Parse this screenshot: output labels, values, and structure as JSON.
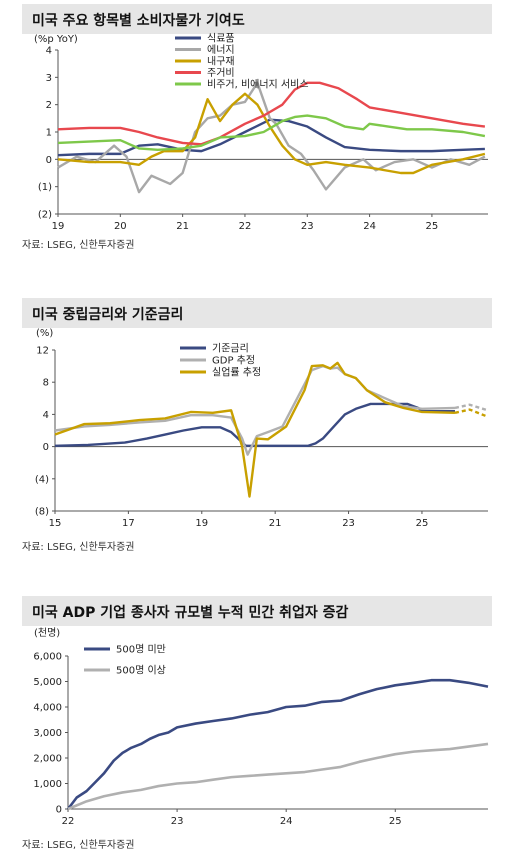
{
  "charts": [
    {
      "title": "미국 주요 항목별 소비자물가 기여도",
      "source": "자료: LSEG, 신한투자증권",
      "chart_data": {
        "type": "line",
        "ylabel": "(%p YoY)",
        "ylim": [
          -2,
          4
        ],
        "yticks": [
          4,
          3,
          2,
          1,
          0,
          -1,
          -2
        ],
        "ytick_labels": [
          "4",
          "3",
          "2",
          "1",
          "0",
          "(1)",
          "(2)"
        ],
        "xlim": [
          2019,
          2025.9
        ],
        "xticks": [
          2019,
          2020,
          2021,
          2022,
          2023,
          2024,
          2025
        ],
        "xtick_labels": [
          "19",
          "20",
          "21",
          "22",
          "23",
          "24",
          "25"
        ],
        "grid": false,
        "legend_position": "top-center",
        "series": [
          {
            "name": "식료품",
            "color": "#3a4a82",
            "x": [
              2019,
              2019.5,
              2020,
              2020.3,
              2020.6,
              2021,
              2021.3,
              2021.6,
              2022,
              2022.4,
              2022.7,
              2023,
              2023.3,
              2023.6,
              2024,
              2024.5,
              2025,
              2025.5,
              2025.85
            ],
            "y": [
              0.15,
              0.2,
              0.2,
              0.5,
              0.55,
              0.35,
              0.3,
              0.55,
              1.0,
              1.45,
              1.4,
              1.2,
              0.8,
              0.45,
              0.35,
              0.3,
              0.3,
              0.35,
              0.38
            ]
          },
          {
            "name": "에너지",
            "color": "#a8a8a8",
            "x": [
              2019,
              2019.3,
              2019.6,
              2019.9,
              2020.1,
              2020.3,
              2020.5,
              2020.8,
              2021,
              2021.2,
              2021.4,
              2021.6,
              2021.8,
              2022,
              2022.2,
              2022.4,
              2022.5,
              2022.7,
              2022.9,
              2023.1,
              2023.3,
              2023.6,
              2023.9,
              2024.1,
              2024.4,
              2024.7,
              2025,
              2025.3,
              2025.6,
              2025.85
            ],
            "y": [
              -0.3,
              0.1,
              -0.1,
              0.5,
              0.1,
              -1.2,
              -0.6,
              -0.9,
              -0.5,
              1.0,
              1.5,
              1.6,
              2.0,
              2.1,
              2.8,
              1.5,
              1.3,
              0.5,
              0.2,
              -0.4,
              -1.1,
              -0.3,
              0.0,
              -0.4,
              -0.1,
              0.0,
              -0.3,
              0.0,
              -0.2,
              0.1
            ]
          },
          {
            "name": "내구재",
            "color": "#c8a000",
            "x": [
              2019,
              2019.5,
              2020,
              2020.3,
              2020.5,
              2020.7,
              2021,
              2021.2,
              2021.4,
              2021.6,
              2021.8,
              2022,
              2022.2,
              2022.4,
              2022.6,
              2022.8,
              2023,
              2023.3,
              2023.6,
              2024,
              2024.5,
              2024.7,
              2025,
              2025.5,
              2025.85
            ],
            "y": [
              0.0,
              -0.1,
              -0.1,
              -0.2,
              0.1,
              0.3,
              0.3,
              0.8,
              2.2,
              1.4,
              2.0,
              2.4,
              2.0,
              1.2,
              0.5,
              0.0,
              -0.2,
              -0.1,
              -0.2,
              -0.3,
              -0.5,
              -0.5,
              -0.2,
              0.0,
              0.2
            ]
          },
          {
            "name": "주거비",
            "color": "#e8484e",
            "x": [
              2019,
              2019.5,
              2020,
              2020.3,
              2020.6,
              2021,
              2021.3,
              2021.6,
              2022,
              2022.3,
              2022.6,
              2022.8,
              2023,
              2023.2,
              2023.5,
              2023.8,
              2024,
              2024.5,
              2025,
              2025.5,
              2025.85
            ],
            "y": [
              1.1,
              1.15,
              1.15,
              1.0,
              0.8,
              0.6,
              0.55,
              0.8,
              1.3,
              1.6,
              2.0,
              2.55,
              2.8,
              2.8,
              2.6,
              2.2,
              1.9,
              1.7,
              1.5,
              1.3,
              1.2
            ]
          },
          {
            "name": "비주거, 비에너지 서비스",
            "color": "#7ec84a",
            "x": [
              2019,
              2019.5,
              2020,
              2020.3,
              2020.6,
              2021,
              2021.3,
              2021.6,
              2022,
              2022.3,
              2022.6,
              2022.8,
              2023,
              2023.3,
              2023.6,
              2023.9,
              2024,
              2024.3,
              2024.6,
              2025,
              2025.5,
              2025.85
            ],
            "y": [
              0.6,
              0.65,
              0.7,
              0.4,
              0.35,
              0.4,
              0.5,
              0.8,
              0.85,
              1.0,
              1.4,
              1.55,
              1.6,
              1.5,
              1.2,
              1.1,
              1.3,
              1.2,
              1.1,
              1.1,
              1.0,
              0.85
            ]
          }
        ]
      }
    },
    {
      "title": "미국 중립금리와 기준금리",
      "source": "자료: LSEG, 신한투자증권",
      "chart_data": {
        "type": "line",
        "ylabel": "(%)",
        "ylim": [
          -8,
          12
        ],
        "yticks": [
          12,
          8,
          4,
          0,
          -4,
          -8
        ],
        "ytick_labels": [
          "12",
          "8",
          "4",
          "0",
          "(4)",
          "(8)"
        ],
        "xlim": [
          2015,
          2026.8
        ],
        "xticks": [
          2015,
          2017,
          2019,
          2021,
          2023,
          2025
        ],
        "xtick_labels": [
          "15",
          "17",
          "19",
          "21",
          "23",
          "25"
        ],
        "grid": false,
        "legend_position": "top-center",
        "series": [
          {
            "name": "기준금리",
            "color": "#3a4a82",
            "dashed_from": null,
            "x": [
              2015,
              2015.9,
              2016.9,
              2017.5,
              2018,
              2018.5,
              2019,
              2019.5,
              2019.8,
              2020.2,
              2021,
              2021.9,
              2022.1,
              2022.3,
              2022.6,
              2022.9,
              2023.2,
              2023.6,
              2024.6,
              2024.9,
              2025,
              2025.9
            ],
            "y": [
              0.1,
              0.2,
              0.5,
              1.0,
              1.5,
              2.0,
              2.4,
              2.4,
              1.8,
              0.1,
              0.1,
              0.1,
              0.4,
              1.0,
              2.5,
              4.0,
              4.7,
              5.3,
              5.3,
              4.8,
              4.4,
              4.4
            ]
          },
          {
            "name": "GDP 추정",
            "color": "#b0b0b0",
            "dashed_from": 2025.9,
            "x": [
              2015,
              2015.8,
              2016.5,
              2017.3,
              2018,
              2018.7,
              2019.3,
              2019.8,
              2020.1,
              2020.25,
              2020.5,
              2020.8,
              2021.2,
              2021.6,
              2022,
              2022.3,
              2022.5,
              2022.7,
              2022.9,
              2023.2,
              2023.5,
              2024,
              2024.5,
              2025,
              2025.9,
              2026.3,
              2026.8
            ],
            "y": [
              2.0,
              2.5,
              2.7,
              3.0,
              3.2,
              3.9,
              3.9,
              3.6,
              1.0,
              -1.0,
              1.3,
              1.8,
              2.5,
              6.0,
              9.5,
              10.0,
              9.7,
              9.8,
              9.0,
              8.5,
              7.0,
              6.0,
              5.0,
              4.7,
              4.8,
              5.2,
              4.5
            ]
          },
          {
            "name": "실업률 추정",
            "color": "#c8a000",
            "dashed_from": 2025.9,
            "x": [
              2015,
              2015.8,
              2016.5,
              2017.3,
              2018,
              2018.7,
              2019.3,
              2019.8,
              2020.1,
              2020.3,
              2020.5,
              2020.8,
              2021.3,
              2021.8,
              2022,
              2022.3,
              2022.5,
              2022.7,
              2022.9,
              2023.2,
              2023.5,
              2024,
              2024.5,
              2025,
              2025.9,
              2026.3,
              2026.8
            ],
            "y": [
              1.5,
              2.8,
              2.9,
              3.3,
              3.5,
              4.3,
              4.2,
              4.5,
              0.0,
              -6.2,
              1.0,
              0.9,
              2.5,
              7.0,
              10.0,
              10.1,
              9.7,
              10.4,
              9.0,
              8.5,
              7.0,
              5.5,
              4.8,
              4.3,
              4.2,
              4.6,
              3.7
            ]
          }
        ]
      }
    },
    {
      "title": "미국 ADP 기업 종사자 규모별 누적 민간 취업자 증감",
      "source": "자료: LSEG, 신한투자증권",
      "chart_data": {
        "type": "line",
        "ylabel": "(천명)",
        "ylim": [
          0,
          6000
        ],
        "yticks": [
          6000,
          5000,
          4000,
          3000,
          2000,
          1000,
          0
        ],
        "ytick_labels": [
          "6,000",
          "5,000",
          "4,000",
          "3,000",
          "2,000",
          "1,000",
          "0"
        ],
        "xlim": [
          2022,
          2025.85
        ],
        "xticks": [
          2022,
          2023,
          2024,
          2025
        ],
        "xtick_labels": [
          "22",
          "23",
          "24",
          "25"
        ],
        "grid": false,
        "legend_position": "top-left",
        "series": [
          {
            "name": "500명 미만",
            "color": "#3a4a82",
            "x": [
              2022,
              2022.08,
              2022.17,
              2022.25,
              2022.33,
              2022.42,
              2022.5,
              2022.58,
              2022.67,
              2022.75,
              2022.83,
              2022.92,
              2023,
              2023.17,
              2023.33,
              2023.5,
              2023.67,
              2023.83,
              2024,
              2024.17,
              2024.33,
              2024.5,
              2024.67,
              2024.83,
              2025,
              2025.17,
              2025.33,
              2025.5,
              2025.67,
              2025.85
            ],
            "y": [
              0,
              450,
              700,
              1050,
              1400,
              1900,
              2200,
              2400,
              2550,
              2750,
              2900,
              3000,
              3200,
              3350,
              3450,
              3550,
              3700,
              3800,
              4000,
              4050,
              4200,
              4250,
              4500,
              4700,
              4850,
              4950,
              5050,
              5050,
              4950,
              4800
            ]
          },
          {
            "name": "500명 이상",
            "color": "#b0b0b0",
            "x": [
              2022,
              2022.17,
              2022.33,
              2022.5,
              2022.67,
              2022.83,
              2023,
              2023.17,
              2023.33,
              2023.5,
              2023.67,
              2023.83,
              2024,
              2024.17,
              2024.33,
              2024.5,
              2024.67,
              2024.83,
              2025,
              2025.17,
              2025.33,
              2025.5,
              2025.67,
              2025.85
            ],
            "y": [
              0,
              300,
              500,
              650,
              750,
              900,
              1000,
              1050,
              1150,
              1250,
              1300,
              1350,
              1400,
              1450,
              1550,
              1650,
              1850,
              2000,
              2150,
              2250,
              2300,
              2350,
              2450,
              2550
            ]
          }
        ]
      }
    }
  ]
}
